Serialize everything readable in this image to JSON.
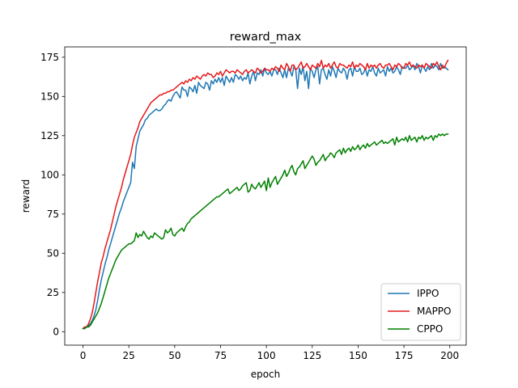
{
  "chart_data": {
    "type": "line",
    "title": "reward_max",
    "xlabel": "epoch",
    "ylabel": "reward",
    "xlim": [
      -9.95,
      208.95
    ],
    "ylim": [
      -8.6,
      181.6
    ],
    "xticks": [
      0,
      25,
      50,
      75,
      100,
      125,
      150,
      175,
      200
    ],
    "yticks": [
      0,
      25,
      50,
      75,
      100,
      125,
      150,
      175
    ],
    "legend_position": "lower-right",
    "grid": false,
    "x": [
      0,
      1,
      2,
      3,
      4,
      5,
      6,
      7,
      8,
      9,
      10,
      11,
      12,
      13,
      14,
      15,
      16,
      17,
      18,
      19,
      20,
      21,
      22,
      23,
      24,
      25,
      26,
      27,
      28,
      29,
      30,
      31,
      32,
      33,
      34,
      35,
      36,
      37,
      38,
      39,
      40,
      41,
      42,
      43,
      44,
      45,
      46,
      47,
      48,
      49,
      50,
      51,
      52,
      53,
      54,
      55,
      56,
      57,
      58,
      59,
      60,
      61,
      62,
      63,
      64,
      65,
      66,
      67,
      68,
      69,
      70,
      71,
      72,
      73,
      74,
      75,
      76,
      77,
      78,
      79,
      80,
      81,
      82,
      83,
      84,
      85,
      86,
      87,
      88,
      89,
      90,
      91,
      92,
      93,
      94,
      95,
      96,
      97,
      98,
      99,
      100,
      101,
      102,
      103,
      104,
      105,
      106,
      107,
      108,
      109,
      110,
      111,
      112,
      113,
      114,
      115,
      116,
      117,
      118,
      119,
      120,
      121,
      122,
      123,
      124,
      125,
      126,
      127,
      128,
      129,
      130,
      131,
      132,
      133,
      134,
      135,
      136,
      137,
      138,
      139,
      140,
      141,
      142,
      143,
      144,
      145,
      146,
      147,
      148,
      149,
      150,
      151,
      152,
      153,
      154,
      155,
      156,
      157,
      158,
      159,
      160,
      161,
      162,
      163,
      164,
      165,
      166,
      167,
      168,
      169,
      170,
      171,
      172,
      173,
      174,
      175,
      176,
      177,
      178,
      179,
      180,
      181,
      182,
      183,
      184,
      185,
      186,
      187,
      188,
      189,
      190,
      191,
      192,
      193,
      194,
      195,
      196,
      197,
      198,
      199
    ],
    "series": [
      {
        "name": "IPPO",
        "color": "#1f77b4",
        "values": [
          2,
          3,
          3,
          4,
          5,
          7,
          10,
          14,
          20,
          27,
          33,
          38,
          43,
          47,
          52,
          56,
          60,
          64,
          68,
          72,
          76,
          79,
          83,
          86,
          89,
          92,
          95,
          108,
          104,
          118,
          123,
          128,
          130,
          132,
          135,
          136,
          138,
          139,
          140,
          141,
          142,
          141,
          141,
          142,
          144,
          145,
          147,
          148,
          147,
          150,
          152,
          153,
          151,
          149,
          156,
          154,
          154,
          150,
          156,
          155,
          153,
          157,
          152,
          159,
          157,
          156,
          155,
          159,
          158,
          154,
          160,
          158,
          161,
          159,
          162,
          159,
          162,
          157,
          163,
          161,
          159,
          162,
          159,
          164,
          163,
          161,
          163,
          160,
          162,
          161,
          165,
          158,
          163,
          166,
          160,
          165,
          164,
          167,
          163,
          168,
          165,
          164,
          166,
          163,
          167,
          167,
          164,
          168,
          165,
          162,
          167,
          162,
          168,
          166,
          163,
          169,
          167,
          155,
          168,
          164,
          169,
          160,
          166,
          155,
          168,
          166,
          162,
          167,
          169,
          158,
          167,
          168,
          164,
          161,
          167,
          163,
          169,
          166,
          162,
          168,
          166,
          165,
          168,
          166,
          161,
          167,
          168,
          163,
          169,
          166,
          166,
          168,
          164,
          165,
          168,
          163,
          167,
          166,
          169,
          165,
          163,
          168,
          165,
          166,
          167,
          163,
          169,
          166,
          168,
          165,
          166,
          169,
          167,
          164,
          169,
          168,
          168,
          170,
          167,
          168,
          170,
          167,
          171,
          169,
          165,
          170,
          168,
          166,
          169,
          167,
          171,
          168,
          170,
          169,
          167,
          171,
          168,
          169,
          168,
          167
        ]
      },
      {
        "name": "MAPPO",
        "color": "#e41a1c",
        "values": [
          2,
          3,
          3,
          5,
          8,
          12,
          18,
          25,
          32,
          38,
          44,
          48,
          53,
          57,
          61,
          65,
          70,
          75,
          80,
          84,
          88,
          92,
          97,
          101,
          105,
          109,
          113,
          119,
          124,
          127,
          130,
          134,
          136,
          138,
          140,
          142,
          144,
          146,
          147,
          148,
          149,
          150,
          151,
          151,
          152,
          152,
          153,
          153,
          154,
          154,
          155,
          156,
          157,
          158,
          159,
          158,
          160,
          159,
          161,
          160,
          162,
          161,
          163,
          162,
          161,
          163,
          164,
          163,
          165,
          164,
          164,
          162,
          163,
          165,
          164,
          166,
          163,
          165,
          167,
          166,
          165,
          166,
          166,
          165,
          167,
          166,
          165,
          164,
          166,
          167,
          165,
          166,
          167,
          166,
          165,
          168,
          167,
          165,
          166,
          168,
          167,
          167,
          166,
          168,
          167,
          169,
          168,
          166,
          170,
          168,
          167,
          171,
          169,
          166,
          170,
          170,
          167,
          168,
          170,
          172,
          168,
          169,
          171,
          169,
          167,
          170,
          169,
          168,
          171,
          169,
          173,
          168,
          170,
          169,
          171,
          168,
          170,
          172,
          169,
          168,
          171,
          170,
          170,
          169,
          168,
          170,
          169,
          172,
          168,
          170,
          169,
          171,
          170,
          169,
          167,
          171,
          168,
          170,
          169,
          170,
          168,
          170,
          171,
          169,
          168,
          170,
          170,
          171,
          169,
          167,
          170,
          169,
          171,
          170,
          168,
          168,
          171,
          170,
          172,
          169,
          170,
          169,
          168,
          170,
          169,
          170,
          168,
          171,
          170,
          169,
          168,
          171,
          170,
          172,
          169,
          167,
          170,
          168,
          171,
          173
        ]
      },
      {
        "name": "CPPO",
        "color": "#008000",
        "values": [
          2,
          2,
          3,
          3,
          4,
          6,
          8,
          10,
          12,
          15,
          18,
          22,
          26,
          30,
          34,
          37,
          40,
          43,
          46,
          48,
          50,
          52,
          53,
          54,
          55,
          56,
          56,
          57,
          58,
          63,
          60,
          62,
          61,
          64,
          62,
          60,
          59,
          61,
          60,
          63,
          62,
          61,
          60,
          59,
          60,
          65,
          63,
          64,
          66,
          62,
          61,
          63,
          64,
          65,
          66,
          64,
          67,
          69,
          70,
          72,
          73,
          74,
          75,
          76,
          77,
          78,
          79,
          80,
          81,
          82,
          83,
          84,
          85,
          86,
          86,
          87,
          88,
          89,
          90,
          91,
          88,
          89,
          90,
          91,
          92,
          90,
          91,
          93,
          94,
          95,
          89,
          90,
          94,
          92,
          91,
          93,
          95,
          92,
          94,
          96,
          90,
          98,
          92,
          95,
          97,
          99,
          94,
          96,
          98,
          100,
          103,
          99,
          101,
          104,
          106,
          102,
          100,
          104,
          105,
          107,
          109,
          104,
          106,
          108,
          110,
          112,
          110,
          106,
          108,
          109,
          111,
          113,
          109,
          111,
          112,
          114,
          113,
          111,
          114,
          115,
          116,
          113,
          117,
          114,
          116,
          117,
          115,
          118,
          116,
          117,
          119,
          116,
          118,
          119,
          117,
          120,
          118,
          119,
          120,
          121,
          119,
          120,
          121,
          122,
          120,
          121,
          120,
          121,
          122,
          123,
          119,
          124,
          121,
          122,
          123,
          122,
          124,
          121,
          125,
          122,
          123,
          124,
          121,
          124,
          123,
          125,
          122,
          124,
          123,
          124,
          125,
          122,
          125,
          124,
          126,
          125,
          126,
          125,
          126,
          126
        ]
      }
    ]
  }
}
